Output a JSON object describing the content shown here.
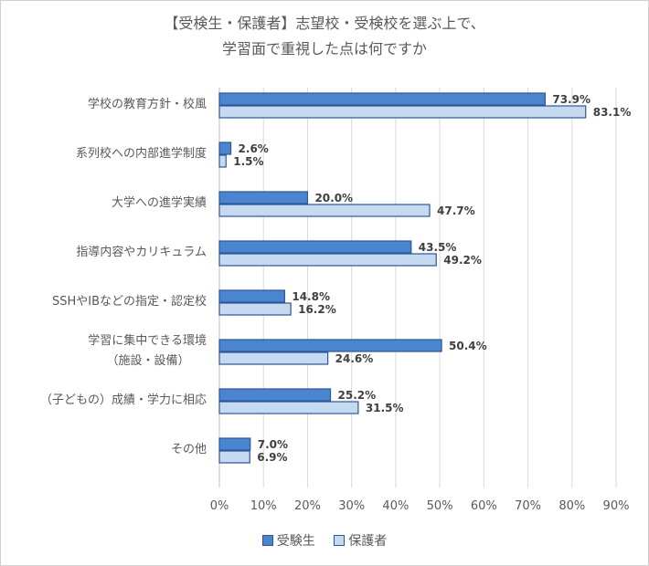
{
  "chart_data": {
    "type": "bar",
    "orientation": "horizontal",
    "title_lines": [
      "【受検生・保護者】志望校・受検校を選ぶ上で、",
      "学習面で重視した点は何ですか"
    ],
    "categories": [
      [
        "学校の教育方針・校風"
      ],
      [
        "系列校への内部進学制度"
      ],
      [
        "大学への進学実績"
      ],
      [
        "指導内容やカリキュラム"
      ],
      [
        "SSHやIBなどの指定・認定校"
      ],
      [
        "学習に集中できる環境",
        "（施設・設備）"
      ],
      [
        "（子どもの）成績・学力に相応"
      ],
      [
        "その他"
      ]
    ],
    "series": [
      {
        "name": "受験生",
        "color": "#4a86cf",
        "values": [
          73.9,
          2.6,
          20.0,
          43.5,
          14.8,
          50.4,
          25.2,
          7.0
        ]
      },
      {
        "name": "保護者",
        "color": "#c5d9f1",
        "values": [
          83.1,
          1.5,
          47.7,
          49.2,
          16.2,
          24.6,
          31.5,
          6.9
        ]
      }
    ],
    "xlim": [
      0,
      90
    ],
    "ticks": [
      "0%",
      "10%",
      "20%",
      "30%",
      "40%",
      "50%",
      "60%",
      "70%",
      "80%",
      "90%"
    ],
    "value_suffix": "%",
    "gridlines": true,
    "legend_position": "bottom"
  }
}
